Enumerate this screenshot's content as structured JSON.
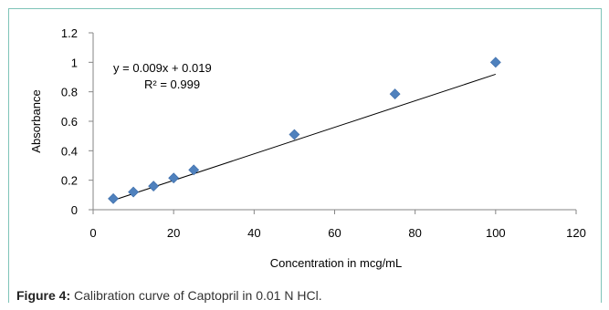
{
  "chart_data": {
    "type": "scatter",
    "title": "",
    "xlabel": "Concentration in mcg/mL",
    "ylabel": "Absorbance",
    "xlim": [
      0,
      120
    ],
    "ylim": [
      0,
      1.2
    ],
    "x_ticks": [
      "0",
      "20",
      "40",
      "60",
      "80",
      "100",
      "120"
    ],
    "y_ticks": [
      "0",
      "0.2",
      "0.4",
      "0.6",
      "0.8",
      "1",
      "1.2"
    ],
    "grid": false,
    "legend": "none",
    "marker_color": "#4f81bd",
    "series": [
      {
        "x": [
          5,
          10,
          15,
          20,
          25,
          50,
          75,
          100
        ],
        "y": [
          0.075,
          0.12,
          0.16,
          0.215,
          0.27,
          0.51,
          0.785,
          1.0
        ],
        "marker": "diamond"
      }
    ],
    "trendline": {
      "slope": 0.009,
      "intercept": 0.019,
      "x_range": [
        5,
        100
      ]
    },
    "annotations": {
      "equation": "y = 0.009x + 0.019",
      "r_squared": "R² = 0.999"
    }
  },
  "caption": {
    "label": "Figure 4:",
    "text": " Calibration curve of Captopril in 0.01 N HCl."
  }
}
